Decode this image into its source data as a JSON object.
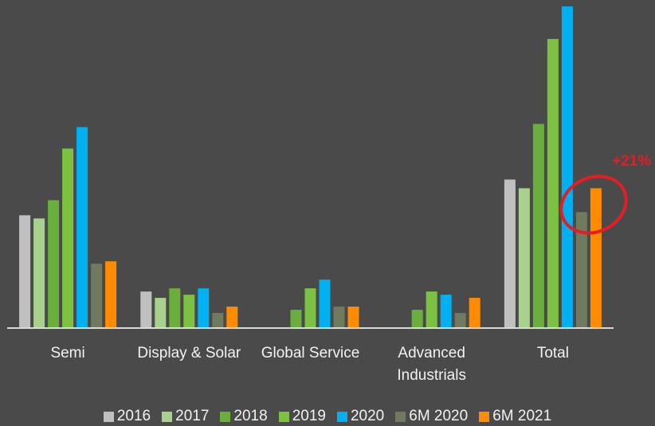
{
  "chart_data": {
    "type": "bar",
    "categories": [
      "Semi",
      "Display & Solar",
      "Global Service",
      "Advanced Industrials",
      "Total"
    ],
    "series": [
      {
        "name": "2016",
        "color": "#c0c0c0",
        "values": [
          141,
          45,
          null,
          null,
          186
        ]
      },
      {
        "name": "2017",
        "color": "#a9d18e",
        "values": [
          137,
          37,
          null,
          null,
          175
        ]
      },
      {
        "name": "2018",
        "color": "#6aaf3d",
        "values": [
          160,
          49,
          22,
          22,
          256
        ]
      },
      {
        "name": "2019",
        "color": "#7cc242",
        "values": [
          225,
          41,
          49,
          45,
          363
        ]
      },
      {
        "name": "2020",
        "color": "#00b0f0",
        "values": [
          252,
          49,
          60,
          41,
          404
        ]
      },
      {
        "name": "6M 2020",
        "color": "#6f7a5f",
        "values": [
          80,
          18,
          26,
          18,
          145
        ]
      },
      {
        "name": "6M 2021",
        "color": "#ff8c00",
        "values": [
          83,
          26,
          26,
          37,
          175
        ]
      }
    ],
    "ylim": [
      0,
      404
    ],
    "annotation": "+21%"
  }
}
